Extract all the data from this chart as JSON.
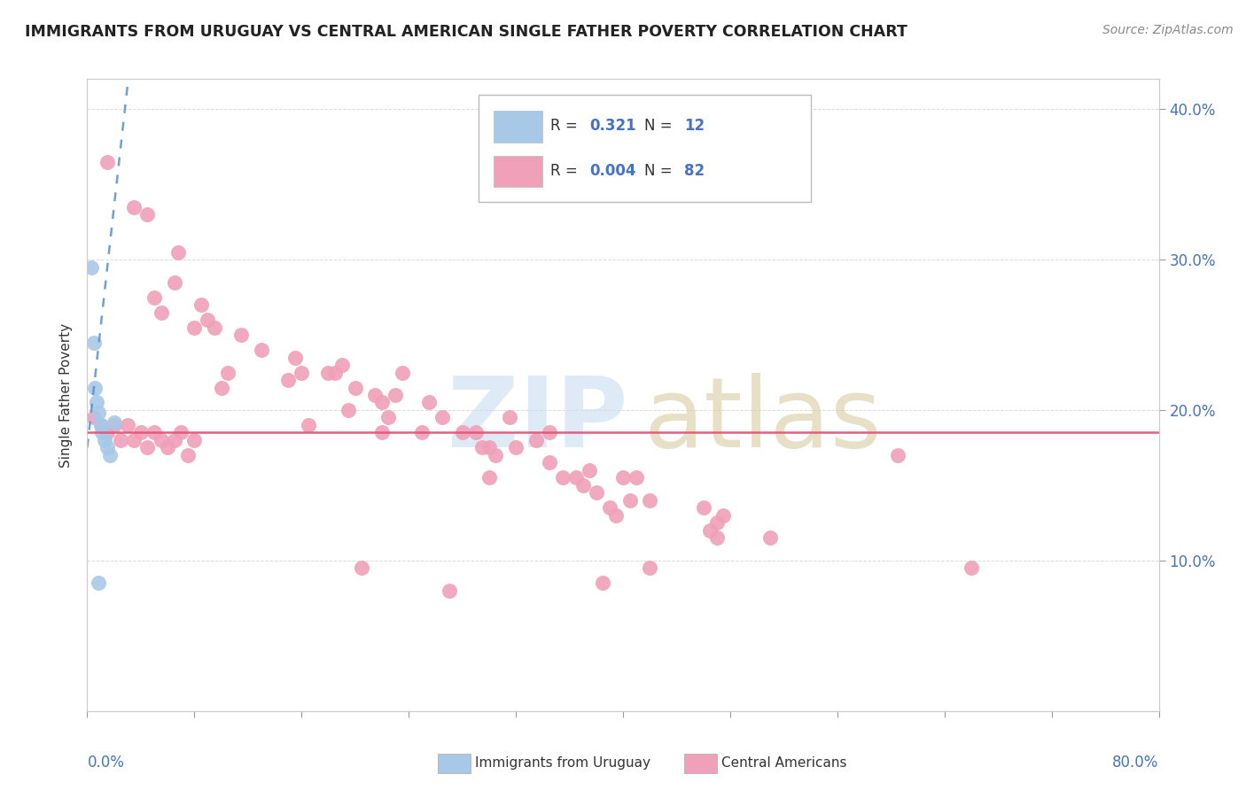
{
  "title": "IMMIGRANTS FROM URUGUAY VS CENTRAL AMERICAN SINGLE FATHER POVERTY CORRELATION CHART",
  "source": "Source: ZipAtlas.com",
  "ylabel": "Single Father Poverty",
  "uruguay_color": "#a8c8e8",
  "uruguay_edge": "#a8c8e8",
  "central_color": "#f0a0b8",
  "central_edge": "#f0a0b8",
  "trend_uruguay_color": "#5590cc",
  "trend_central_color": "#e05878",
  "uruguay_points": [
    [
      0.3,
      29.5
    ],
    [
      0.5,
      24.5
    ],
    [
      0.6,
      21.5
    ],
    [
      0.7,
      20.5
    ],
    [
      0.8,
      19.8
    ],
    [
      1.0,
      19.0
    ],
    [
      1.1,
      18.5
    ],
    [
      1.3,
      18.0
    ],
    [
      1.5,
      17.5
    ],
    [
      1.7,
      17.0
    ],
    [
      2.0,
      19.2
    ],
    [
      0.8,
      8.5
    ]
  ],
  "central_points": [
    [
      1.5,
      36.5
    ],
    [
      3.5,
      33.5
    ],
    [
      4.5,
      33.0
    ],
    [
      5.0,
      27.5
    ],
    [
      5.5,
      26.5
    ],
    [
      6.5,
      28.5
    ],
    [
      6.8,
      30.5
    ],
    [
      8.5,
      27.0
    ],
    [
      8.0,
      25.5
    ],
    [
      9.5,
      25.5
    ],
    [
      9.0,
      26.0
    ],
    [
      10.5,
      22.5
    ],
    [
      10.0,
      21.5
    ],
    [
      11.5,
      25.0
    ],
    [
      13.0,
      24.0
    ],
    [
      15.0,
      22.0
    ],
    [
      15.5,
      23.5
    ],
    [
      16.5,
      19.0
    ],
    [
      16.0,
      22.5
    ],
    [
      18.0,
      22.5
    ],
    [
      18.5,
      22.5
    ],
    [
      19.0,
      23.0
    ],
    [
      20.0,
      21.5
    ],
    [
      19.5,
      20.0
    ],
    [
      21.5,
      21.0
    ],
    [
      22.5,
      19.5
    ],
    [
      22.0,
      20.5
    ],
    [
      22.0,
      18.5
    ],
    [
      23.0,
      21.0
    ],
    [
      23.5,
      22.5
    ],
    [
      25.0,
      18.5
    ],
    [
      25.5,
      20.5
    ],
    [
      26.5,
      19.5
    ],
    [
      28.0,
      18.5
    ],
    [
      29.0,
      18.5
    ],
    [
      29.5,
      17.5
    ],
    [
      30.0,
      17.5
    ],
    [
      30.5,
      17.0
    ],
    [
      31.5,
      19.5
    ],
    [
      30.0,
      15.5
    ],
    [
      32.0,
      17.5
    ],
    [
      33.5,
      18.0
    ],
    [
      34.5,
      18.5
    ],
    [
      34.5,
      16.5
    ],
    [
      35.5,
      15.5
    ],
    [
      36.5,
      15.5
    ],
    [
      37.0,
      15.0
    ],
    [
      37.5,
      16.0
    ],
    [
      38.0,
      14.5
    ],
    [
      40.0,
      15.5
    ],
    [
      41.0,
      15.5
    ],
    [
      39.0,
      13.5
    ],
    [
      39.5,
      13.0
    ],
    [
      40.5,
      14.0
    ],
    [
      42.0,
      14.0
    ],
    [
      46.0,
      13.5
    ],
    [
      47.0,
      12.5
    ],
    [
      47.5,
      13.0
    ],
    [
      46.5,
      12.0
    ],
    [
      47.0,
      11.5
    ],
    [
      51.0,
      11.5
    ],
    [
      0.5,
      19.5
    ],
    [
      1.0,
      19.0
    ],
    [
      1.5,
      18.5
    ],
    [
      2.0,
      19.0
    ],
    [
      2.5,
      18.0
    ],
    [
      3.0,
      19.0
    ],
    [
      3.5,
      18.0
    ],
    [
      4.0,
      18.5
    ],
    [
      4.5,
      17.5
    ],
    [
      5.0,
      18.5
    ],
    [
      5.5,
      18.0
    ],
    [
      6.0,
      17.5
    ],
    [
      6.5,
      18.0
    ],
    [
      7.0,
      18.5
    ],
    [
      7.5,
      17.0
    ],
    [
      8.0,
      18.0
    ],
    [
      60.5,
      17.0
    ],
    [
      66.0,
      9.5
    ],
    [
      42.0,
      9.5
    ],
    [
      20.5,
      9.5
    ],
    [
      38.5,
      8.5
    ],
    [
      27.0,
      8.0
    ]
  ],
  "xmin": 0.0,
  "xmax": 80.0,
  "ymin": 0.0,
  "ymax": 42.0,
  "background_color": "#ffffff"
}
